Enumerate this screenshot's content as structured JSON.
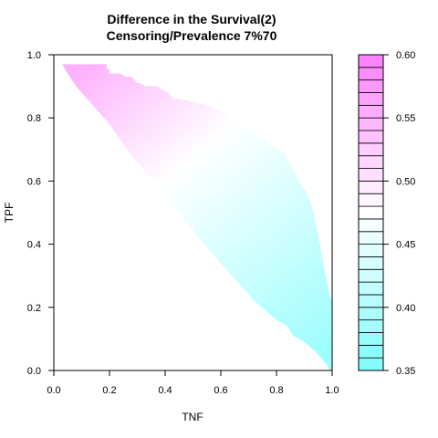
{
  "chart_data": {
    "type": "heatmap",
    "title": "Difference in the Survival(2)",
    "subtitle": "Censoring/Prevalence 7%70",
    "xlabel": "TNF",
    "ylabel": "TPF",
    "xlim": [
      0,
      1
    ],
    "ylim": [
      0,
      1
    ],
    "x_ticks": [
      "0.0",
      "0.2",
      "0.4",
      "0.6",
      "0.8",
      "1.0"
    ],
    "y_ticks": [
      "0.0",
      "0.2",
      "0.4",
      "0.6",
      "0.8",
      "1.0"
    ],
    "grid": false,
    "colorbar": {
      "min": 0.35,
      "max": 0.6,
      "ticks": [
        "0.35",
        "0.40",
        "0.45",
        "0.50",
        "0.55",
        "0.60"
      ],
      "levels": 25,
      "color_low": "#7ffcfc",
      "color_mid": "#ffffff",
      "color_high": "#fc7ffc"
    },
    "region_boundary": [
      [
        0.03,
        0.97
      ],
      [
        0.19,
        0.97
      ],
      [
        0.19,
        0.955
      ],
      [
        0.2,
        0.955
      ],
      [
        0.2,
        0.94
      ],
      [
        0.24,
        0.94
      ],
      [
        0.26,
        0.93
      ],
      [
        0.28,
        0.93
      ],
      [
        0.3,
        0.91
      ],
      [
        0.31,
        0.91
      ],
      [
        0.33,
        0.9
      ],
      [
        0.37,
        0.9
      ],
      [
        0.39,
        0.89
      ],
      [
        0.41,
        0.88
      ],
      [
        0.43,
        0.86
      ],
      [
        0.45,
        0.86
      ],
      [
        0.5,
        0.85
      ],
      [
        0.55,
        0.84
      ],
      [
        0.61,
        0.82
      ],
      [
        0.67,
        0.78
      ],
      [
        0.72,
        0.76
      ],
      [
        0.78,
        0.71
      ],
      [
        0.83,
        0.69
      ],
      [
        0.84,
        0.66
      ],
      [
        0.86,
        0.64
      ],
      [
        0.88,
        0.6
      ],
      [
        0.91,
        0.56
      ],
      [
        0.92,
        0.54
      ],
      [
        0.93,
        0.51
      ],
      [
        0.94,
        0.47
      ],
      [
        0.95,
        0.43
      ],
      [
        0.96,
        0.38
      ],
      [
        0.97,
        0.33
      ],
      [
        0.98,
        0.29
      ],
      [
        0.99,
        0.24
      ],
      [
        1.0,
        0.22
      ],
      [
        1.0,
        0.0
      ],
      [
        0.99,
        0.0
      ],
      [
        0.98,
        0.02
      ],
      [
        0.96,
        0.04
      ],
      [
        0.94,
        0.06
      ],
      [
        0.9,
        0.09
      ],
      [
        0.86,
        0.11
      ],
      [
        0.84,
        0.14
      ],
      [
        0.8,
        0.16
      ],
      [
        0.76,
        0.19
      ],
      [
        0.72,
        0.22
      ],
      [
        0.68,
        0.26
      ],
      [
        0.64,
        0.3
      ],
      [
        0.6,
        0.34
      ],
      [
        0.56,
        0.38
      ],
      [
        0.52,
        0.42
      ],
      [
        0.48,
        0.47
      ],
      [
        0.44,
        0.51
      ],
      [
        0.4,
        0.55
      ],
      [
        0.36,
        0.6
      ],
      [
        0.32,
        0.64
      ],
      [
        0.28,
        0.68
      ],
      [
        0.24,
        0.73
      ],
      [
        0.2,
        0.78
      ],
      [
        0.16,
        0.82
      ],
      [
        0.12,
        0.86
      ],
      [
        0.08,
        0.9
      ],
      [
        0.05,
        0.94
      ]
    ],
    "value_gradient": [
      {
        "at": [
          0.1,
          0.95
        ],
        "value": 0.55
      },
      {
        "at": [
          0.4,
          0.6
        ],
        "value": 0.475
      },
      {
        "at": [
          0.95,
          0.05
        ],
        "value": 0.38
      }
    ]
  }
}
